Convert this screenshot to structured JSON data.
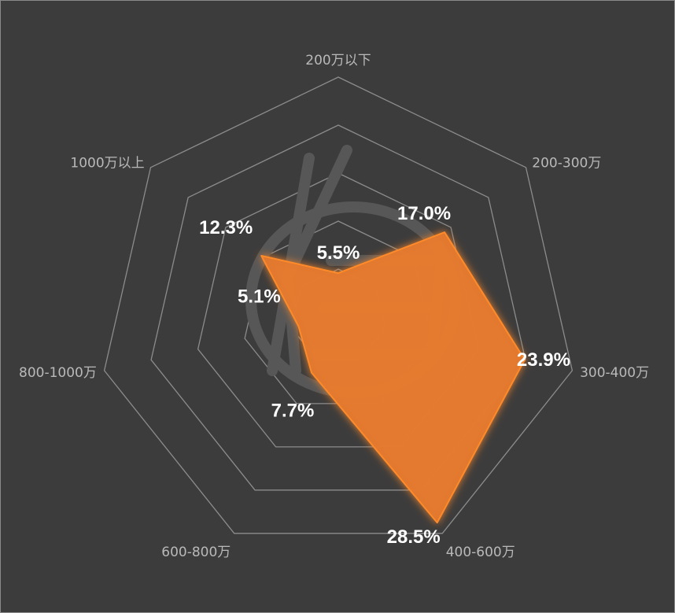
{
  "chart_data": {
    "type": "radar",
    "categories": [
      "200万以下",
      "200-300万",
      "300-400万",
      "400-600万",
      "600-800万",
      "800-1000万",
      "1000万以上"
    ],
    "series": [
      {
        "values": [
          5.5,
          17.0,
          23.9,
          28.5,
          7.7,
          5.1,
          12.3
        ],
        "value_labels": [
          "5.5%",
          "17.0%",
          "23.9%",
          "28.5%",
          "7.7%",
          "5.1%",
          "12.3%"
        ]
      }
    ],
    "rlim": [
      0,
      30
    ],
    "rings": 5,
    "grid": true,
    "legend": "none"
  },
  "colors": {
    "background": "#3d3c3c",
    "grid": "#8c8c8c",
    "fill": "#e47a2e",
    "glow": "#ff8a2a",
    "axis_label": "#b9b9b9",
    "value_label": "#ffffff"
  }
}
